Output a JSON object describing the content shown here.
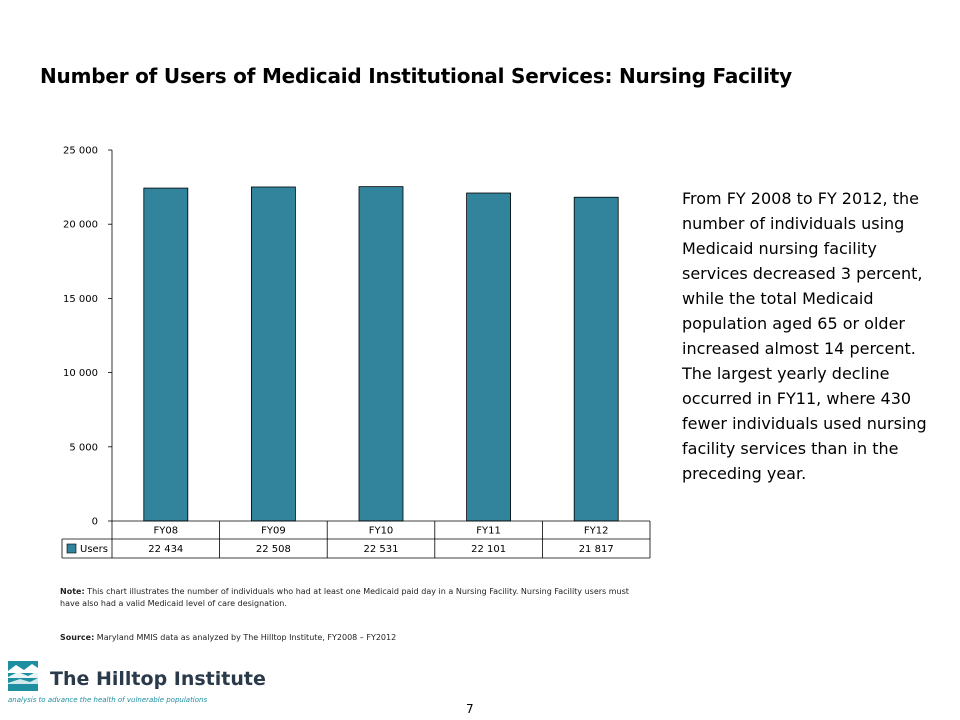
{
  "title": "Number of Users of Medicaid Institutional Services: Nursing Facility",
  "chart_data": {
    "type": "bar",
    "categories": [
      "FY08",
      "FY09",
      "FY10",
      "FY11",
      "FY12"
    ],
    "series": [
      {
        "name": "Users",
        "values": [
          22434,
          22508,
          22531,
          22101,
          21817
        ],
        "color": "#31849b"
      }
    ],
    "value_labels": [
      "22 434",
      "22 508",
      "22 531",
      "22 101",
      "21 817"
    ],
    "yticks": [
      0,
      5000,
      10000,
      15000,
      20000,
      25000
    ],
    "ytick_labels": [
      "0",
      "5 000",
      "10 000",
      "15 000",
      "20 000",
      "25 000"
    ],
    "ylim": [
      0,
      25000
    ],
    "legend": "data-table",
    "grid": false
  },
  "side_text": "From FY 2008 to FY 2012, the number of individuals using Medicaid nursing facility services decreased 3 percent, while the total Medicaid population aged 65 or older increased almost 14 percent. The largest yearly decline occurred in FY11, where 430  fewer individuals used nursing facility services than in the preceding year.",
  "note": {
    "label": "Note:",
    "text": " This chart illustrates the number of individuals who had at least one Medicaid paid day in a Nursing Facility. Nursing Facility users must have also had a valid Medicaid level of care designation."
  },
  "source": {
    "label": "Source:",
    "text": " Maryland MMIS data as analyzed by The Hilltop Institute, FY2008 – FY2012"
  },
  "logo": {
    "name": "The Hilltop Institute",
    "tagline": "analysis to advance the health of vulnerable populations"
  },
  "page_number": "7"
}
